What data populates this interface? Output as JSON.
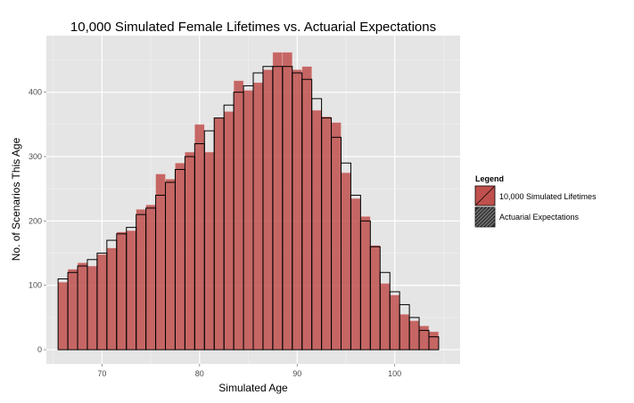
{
  "chart_data": {
    "type": "bar",
    "title": "10,000 Simulated Female Lifetimes vs. Actuarial Expectations",
    "xlabel": "Simulated Age",
    "ylabel": "No. of Scenarios This Age",
    "x": [
      66,
      67,
      68,
      69,
      70,
      71,
      72,
      73,
      74,
      75,
      76,
      77,
      78,
      79,
      80,
      81,
      82,
      83,
      84,
      85,
      86,
      87,
      88,
      89,
      90,
      91,
      92,
      93,
      94,
      95,
      96,
      97,
      98,
      99,
      100,
      101,
      102,
      103,
      104
    ],
    "series": [
      {
        "name": "10,000 Simulated Lifetimes",
        "values": [
          105,
          125,
          135,
          130,
          148,
          158,
          183,
          185,
          218,
          225,
          273,
          265,
          290,
          307,
          350,
          307,
          360,
          370,
          418,
          403,
          415,
          435,
          462,
          462,
          435,
          440,
          372,
          362,
          353,
          275,
          235,
          207,
          162,
          103,
          85,
          55,
          45,
          37,
          28
        ],
        "color": "#c0504d"
      },
      {
        "name": "Actuarial Expectations",
        "values": [
          110,
          120,
          130,
          140,
          150,
          170,
          180,
          190,
          210,
          220,
          240,
          260,
          280,
          300,
          320,
          340,
          360,
          380,
          400,
          410,
          430,
          440,
          440,
          440,
          430,
          420,
          390,
          360,
          330,
          290,
          240,
          200,
          160,
          120,
          90,
          70,
          50,
          30,
          20
        ],
        "color": "#000000"
      }
    ],
    "xlim": [
      64.3,
      106.7
    ],
    "ylim": [
      -22,
      488
    ],
    "xticks": [
      70,
      80,
      90,
      100
    ],
    "yticks": [
      0,
      100,
      200,
      300,
      400
    ],
    "grid": true,
    "legend": {
      "title": "Legend",
      "position": "right"
    }
  }
}
